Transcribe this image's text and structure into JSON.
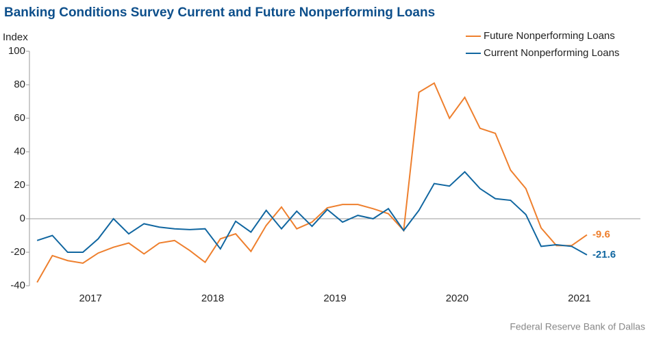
{
  "chart_data": {
    "type": "line",
    "title": "Banking Conditions Survey Current and Future Nonperforming Loans",
    "y_label": "Index",
    "source": "Federal Reserve Bank of Dallas",
    "x": [
      2017.0625,
      2017.1875,
      2017.3125,
      2017.4375,
      2017.5625,
      2017.6875,
      2017.8125,
      2017.9375,
      2018.0625,
      2018.1875,
      2018.3125,
      2018.4375,
      2018.5625,
      2018.6875,
      2018.8125,
      2018.9375,
      2019.0625,
      2019.1875,
      2019.3125,
      2019.4375,
      2019.5625,
      2019.6875,
      2019.8125,
      2019.9375,
      2020.0625,
      2020.1875,
      2020.3125,
      2020.4375,
      2020.5625,
      2020.6875,
      2020.8125,
      2020.9375,
      2021.0625,
      2021.1875,
      2021.3125,
      2021.4375,
      2021.5625
    ],
    "xlim": [
      2017,
      2022
    ],
    "xticks": [
      {
        "value": 2017.5,
        "label": "2017"
      },
      {
        "value": 2018.5,
        "label": "2018"
      },
      {
        "value": 2019.5,
        "label": "2019"
      },
      {
        "value": 2020.5,
        "label": "2020"
      },
      {
        "value": 2021.5,
        "label": "2021"
      }
    ],
    "ylim": [
      -40,
      100
    ],
    "yticks": [
      -40,
      -20,
      0,
      20,
      40,
      60,
      80,
      100
    ],
    "grid": false,
    "legend": "top-right",
    "series": [
      {
        "name": "Future Nonperforming Loans",
        "color": "#ee7f2d",
        "values": [
          -38,
          -22,
          -25,
          -26.5,
          -20.5,
          -17,
          -14.5,
          -21,
          -14.5,
          -13,
          -19,
          -26,
          -12,
          -9,
          -19.5,
          -4,
          7,
          -6,
          -2,
          6.5,
          8.5,
          8.5,
          6,
          3,
          -7,
          75.5,
          81,
          60,
          72.5,
          54,
          51,
          29,
          18,
          -5.5,
          -16,
          -16,
          -9.6
        ]
      },
      {
        "name": "Current Nonperforming Loans",
        "color": "#1066a0",
        "values": [
          -13,
          -10,
          -20,
          -20,
          -12,
          0,
          -9,
          -3,
          -5,
          -6,
          -6.5,
          -6,
          -18,
          -1.5,
          -8,
          5,
          -6,
          4.5,
          -4.5,
          5.5,
          -2,
          2,
          0,
          6,
          -7,
          5,
          21,
          19.5,
          28,
          18,
          12,
          11,
          2.5,
          -16.5,
          -15.5,
          -16.5,
          -21.6
        ]
      }
    ]
  }
}
